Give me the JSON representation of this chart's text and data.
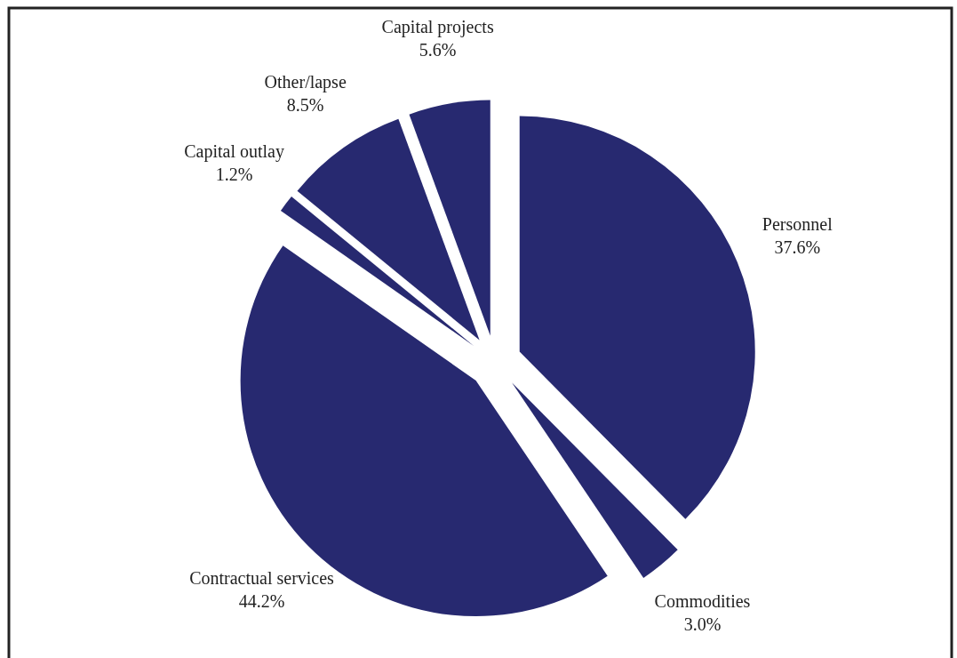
{
  "chart_data": {
    "type": "pie",
    "categories": [
      "Personnel",
      "Commodities",
      "Contractual services",
      "Capital outlay",
      "Other/lapse",
      "Capital projects"
    ],
    "values": [
      37.6,
      3.0,
      44.2,
      1.2,
      8.5,
      5.6
    ],
    "colors": [
      "#272970",
      "#272970",
      "#272970",
      "#272970",
      "#272970",
      "#272970"
    ],
    "value_labels": [
      "37.6%",
      "3.0%",
      "44.2%",
      "1.2%",
      "8.5%",
      "5.6%"
    ]
  }
}
